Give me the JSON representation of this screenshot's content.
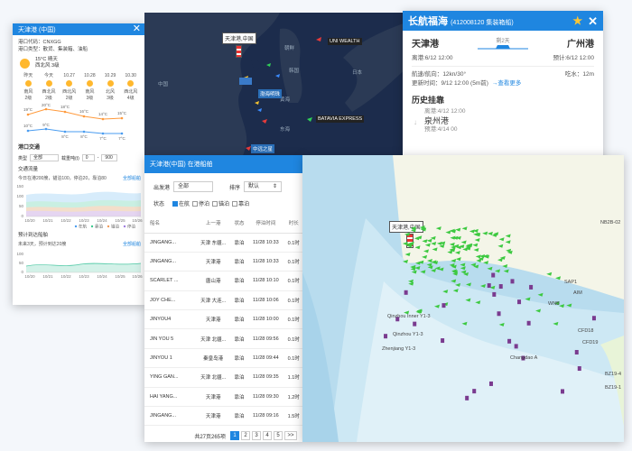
{
  "port_panel": {
    "title": "天津港 (中国)",
    "code_line": "港口代码：CNXGG",
    "type_line": "港口类型：散货、集装箱、油船",
    "current_weather": {
      "temp": "15°C 晴天",
      "wind": "西北风 3级"
    },
    "forecast": [
      {
        "day": "昨天",
        "wind_dir": "南风",
        "wind_lvl": "2级"
      },
      {
        "day": "今天",
        "wind_dir": "西北风",
        "wind_lvl": "2级"
      },
      {
        "day": "10.27",
        "wind_dir": "西北风",
        "wind_lvl": "2级"
      },
      {
        "day": "10.28",
        "wind_dir": "南风",
        "wind_lvl": "3级"
      },
      {
        "day": "10.29",
        "wind_dir": "北风",
        "wind_lvl": "3级"
      },
      {
        "day": "10.30",
        "wind_dir": "西北风",
        "wind_lvl": "4级"
      }
    ],
    "temps_high": [
      "19°C",
      "20°C",
      "18°C",
      "16°C",
      "14°C",
      "15°C"
    ],
    "temps_low": [
      "10°C",
      "9°C",
      "8°C",
      "8°C",
      "7°C",
      "7°C"
    ],
    "traffic_title": "港口交通",
    "type_label": "类型",
    "type_value": "全部",
    "tonnage_label": "载重吨(t)",
    "tonnage_min": "0",
    "tonnage_max": "900",
    "flow_title": "交通流量",
    "flow_desc": "今日在港200艘，锚泊100，停泊20，靠泊80",
    "more_link": "全部船舶",
    "chart1_yticks": [
      "150",
      "100",
      "50",
      "0"
    ],
    "chart1_xticks": [
      "10/20",
      "10/21",
      "10/22",
      "10/23",
      "10/24",
      "10/25",
      "10/26"
    ],
    "chart1_legend": [
      "在航",
      "靠泊",
      "锚泊",
      "停泊"
    ],
    "arrival_title": "预计到达船舶",
    "arrival_desc": "未来3天，预计到达20艘",
    "arrival_link": "全部船舶",
    "chart2_yticks": [
      "100",
      "50",
      "0"
    ],
    "chart2_xticks": [
      "10/20",
      "10/21",
      "10/22",
      "10/23",
      "10/24",
      "10/25",
      "10/26"
    ]
  },
  "map1": {
    "labels": [
      "天津港,中国",
      "UNI WEALTH",
      "BATAVIA EXPRESS",
      "中远之星",
      "渤海明珠"
    ],
    "places": [
      "朝鲜",
      "韩国",
      "中国",
      "日本",
      "东海",
      "黄海"
    ]
  },
  "ship_panel": {
    "name": "长航福海",
    "id_type": "(412008120 集装箱船)",
    "origin": "天津港",
    "dest": "广州港",
    "remaining": "剩2天",
    "depart": "离港:6/12 12:00",
    "eta": "预计:6/12 12:00",
    "speed_label": "航速/航向：",
    "speed_value": "12kn/30°",
    "draft_label": "吃水：",
    "draft_value": "12m",
    "updated_label": "更新时间：",
    "updated_value": "9/12  12:00 (5m前)",
    "more": "查看更多",
    "history_title": "历史挂靠",
    "hist_time": "离港:4/12 12:00",
    "hist_port": "泉州港",
    "hist_next": "预港:4/14 00"
  },
  "table_panel": {
    "title": "天津港(中国) 在港船舶",
    "origin_label": "出发港",
    "origin_value": "全部",
    "sort_label": "排序",
    "sort_value": "默认",
    "status_label": "状态",
    "status_opts": [
      {
        "label": "在航",
        "on": true
      },
      {
        "label": "停泊",
        "on": false
      },
      {
        "label": "锚泊",
        "on": false
      },
      {
        "label": "靠泊",
        "on": false
      }
    ],
    "columns": [
      "船名",
      "上一港",
      "状态",
      "停泊时间",
      "时长"
    ],
    "rows": [
      [
        "JINGANG...",
        "天津 东疆...",
        "靠泊",
        "11/28 10:33",
        "0.1时"
      ],
      [
        "JINGANG...",
        "天津港",
        "靠泊",
        "11/28 10:33",
        "0.1时"
      ],
      [
        "SCARLET ...",
        "唐山港",
        "靠泊",
        "11/28 10:10",
        "0.1时"
      ],
      [
        "JOY CHE...",
        "天津 大连...",
        "靠泊",
        "11/28 10:06",
        "0.1时"
      ],
      [
        "JINYOU4",
        "天津港",
        "靠泊",
        "11/28 10:00",
        "0.1时"
      ],
      [
        "JIN YOU 5",
        "天津 北疆...",
        "靠泊",
        "11/28 09:56",
        "0.1时"
      ],
      [
        "JINYOU 1",
        "秦皇岛港",
        "靠泊",
        "11/28 09:44",
        "0.1时"
      ],
      [
        "YING GAN...",
        "天津 北疆...",
        "靠泊",
        "11/28 09:35",
        "1.1时"
      ],
      [
        "HAI YANG...",
        "天津港",
        "靠泊",
        "11/28 09:30",
        "1.2时"
      ],
      [
        "JINGANG...",
        "天津港",
        "靠泊",
        "11/28 09:16",
        "1.5时"
      ]
    ],
    "total": "共27页265项",
    "pages": [
      "1",
      "2",
      "3",
      "4",
      "5",
      ">>"
    ]
  },
  "map2": {
    "label": "天津港,中国",
    "places": [
      "Changdao A",
      "Qinzhou Inner Y1-3",
      "Qinzhou Y1-3",
      "Zhenjiang Y1-3",
      "NB2B-02",
      "WNB",
      "SAP1",
      "AIM",
      "BZ19-4",
      "BZ19-1",
      "CFD18",
      "CFD19"
    ]
  }
}
